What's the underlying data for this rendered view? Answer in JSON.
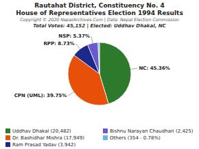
{
  "chart_data": {
    "type": "pie",
    "title": "Rautahat District, Constituency No. 4",
    "subtitle": "House of Representatives Election 1994 Results",
    "annotations": [
      "Copyright © 2020 NepalArchives.Com | Data: Nepal Election Commission",
      "Total Votes: 45,152 | Elected: Uddhav Dhakal, NC"
    ],
    "categories": [
      "Uddhav Dhakal (20,482)",
      "Dr. Bashidhar Mishra (17,949)",
      "Ram Prasad Yadav (3,942)",
      "Bishnu Narayan Chaudhari (2,425)",
      "Others (354 - 0.78%)"
    ],
    "values": [
      45.36,
      39.75,
      8.73,
      5.37,
      0.78
    ],
    "value_labels": [
      "NC: 45.36%",
      "CPN (UML): 39.75%",
      "RPP: 8.73%",
      "NSP: 5.37%",
      null
    ],
    "colors": [
      "#2d7a2d",
      "#e8500a",
      "#1b2a8a",
      "#6a5acd",
      "#6ab4e8"
    ],
    "data_labels": true,
    "legend": "bottom"
  }
}
